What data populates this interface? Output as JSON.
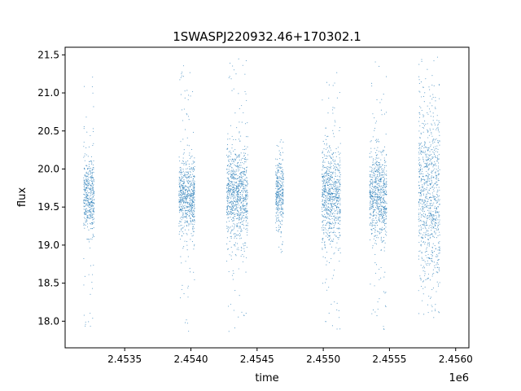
{
  "chart_data": {
    "type": "scatter",
    "title": "1SWASPJ220932.46+170302.1",
    "xlabel": "time",
    "ylabel": "flux",
    "x_offset_label": "1e6",
    "xlim": [
      2453050,
      2456100
    ],
    "ylim": [
      17.65,
      21.6
    ],
    "x_ticks": [
      2453500,
      2454000,
      2454500,
      2455000,
      2455500,
      2456000
    ],
    "x_tick_labels": [
      "2.4535",
      "2.4540",
      "2.4545",
      "2.4550",
      "2.4555",
      "2.4560"
    ],
    "y_ticks": [
      18.0,
      18.5,
      19.0,
      19.5,
      20.0,
      20.5,
      21.0,
      21.5
    ],
    "y_tick_labels": [
      "18.0",
      "18.5",
      "19.0",
      "19.5",
      "20.0",
      "20.5",
      "21.0",
      "21.5"
    ],
    "grid": false,
    "marker_color": "#1f77b4",
    "seasons": [
      {
        "x_start": 2453190,
        "x_end": 2453270,
        "flux_center": 19.65,
        "core_low": 19.2,
        "core_high": 20.15,
        "tail_low": 17.88,
        "tail_high": 21.27
      },
      {
        "x_start": 2453910,
        "x_end": 2454030,
        "flux_center": 19.65,
        "core_low": 19.2,
        "core_high": 20.15,
        "tail_low": 17.85,
        "tail_high": 21.4
      },
      {
        "x_start": 2454270,
        "x_end": 2454430,
        "flux_center": 19.65,
        "core_low": 19.0,
        "core_high": 20.3,
        "tail_low": 17.85,
        "tail_high": 21.47
      },
      {
        "x_start": 2454640,
        "x_end": 2454700,
        "flux_center": 19.65,
        "core_low": 19.15,
        "core_high": 20.05,
        "tail_low": 18.9,
        "tail_high": 20.4
      },
      {
        "x_start": 2454990,
        "x_end": 2455130,
        "flux_center": 19.65,
        "core_low": 19.0,
        "core_high": 20.3,
        "tail_low": 17.85,
        "tail_high": 21.3
      },
      {
        "x_start": 2455350,
        "x_end": 2455480,
        "flux_center": 19.65,
        "core_low": 19.05,
        "core_high": 20.25,
        "tail_low": 17.88,
        "tail_high": 21.45
      },
      {
        "x_start": 2455720,
        "x_end": 2455880,
        "flux_center": 19.65,
        "core_low": 18.7,
        "core_high": 20.9,
        "tail_low": 17.82,
        "tail_high": 21.47
      }
    ]
  }
}
